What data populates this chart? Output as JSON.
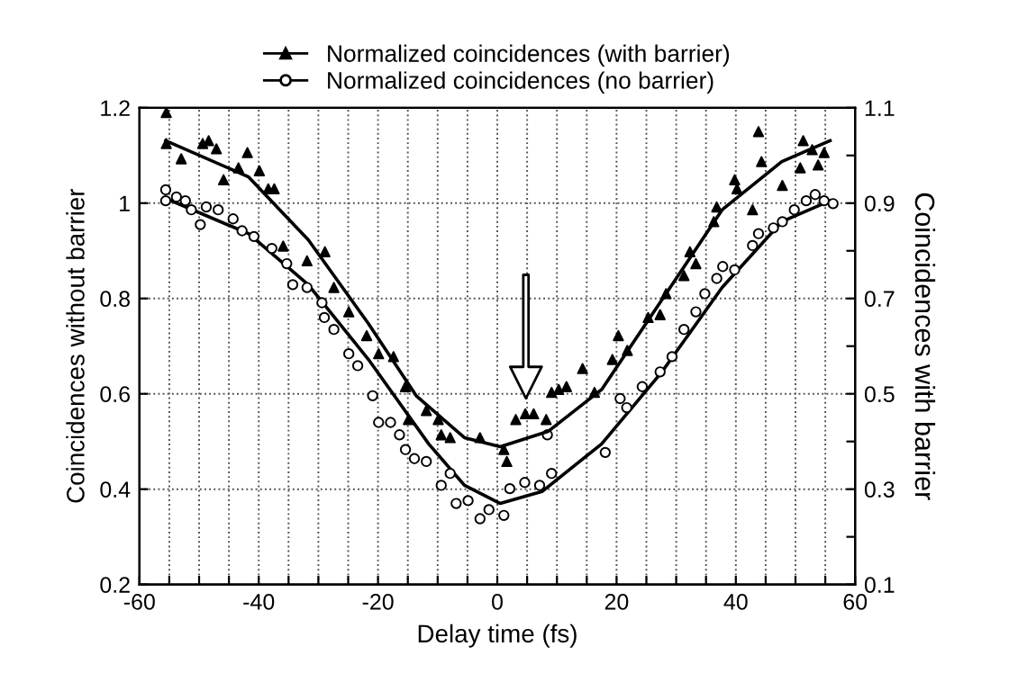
{
  "chart_data": {
    "type": "scatter",
    "xlabel": "Delay time (fs)",
    "ylabel": "Coincidences without barrier",
    "y2label": "Coincidences with barrier",
    "xlim": [
      -60,
      60
    ],
    "ylim": [
      0.2,
      1.2
    ],
    "y2lim": [
      0.1,
      1.1
    ],
    "xticks": [
      -60,
      {
        "value": -55,
        "label": null
      },
      {
        "value": -50,
        "label": null
      },
      {
        "value": -45,
        "label": null
      },
      -40,
      {
        "value": -35,
        "label": null
      },
      {
        "value": -30,
        "label": null
      },
      {
        "value": -25,
        "label": null
      },
      -20,
      {
        "value": -15,
        "label": null
      },
      {
        "value": -10,
        "label": null
      },
      {
        "value": -5,
        "label": null
      },
      0,
      {
        "value": 5,
        "label": null
      },
      {
        "value": 10,
        "label": null
      },
      {
        "value": 15,
        "label": null
      },
      20,
      {
        "value": 25,
        "label": null
      },
      {
        "value": 30,
        "label": null
      },
      {
        "value": 35,
        "label": null
      },
      40,
      {
        "value": 45,
        "label": null
      },
      {
        "value": 50,
        "label": null
      },
      {
        "value": 55,
        "label": null
      },
      60
    ],
    "yticks": [
      0.2,
      0.4,
      0.6,
      0.8,
      1,
      1.2
    ],
    "y2ticks": [
      0.1,
      {
        "value": 0.2,
        "label": null
      },
      0.3,
      {
        "value": 0.4,
        "label": null
      },
      0.5,
      {
        "value": 0.6,
        "label": null
      },
      0.7,
      {
        "value": 0.8,
        "label": null
      },
      0.9,
      {
        "value": 1.0,
        "label": null
      },
      1.1
    ],
    "grid": true,
    "line_style": "dotted",
    "legend": "top",
    "series": [
      {
        "name": "Normalized coincidences (with barrier)",
        "axis": "y2",
        "marker": "triangle",
        "color": "#000000",
        "x": [
          -55.5,
          -55.5,
          -53,
          -49.4,
          -48.4,
          -47.1,
          -45.9,
          -43.4,
          -41.9,
          -39.9,
          -38.4,
          -37.4,
          -35.9,
          -31.9,
          -28.9,
          -27.4,
          -24.9,
          -21.9,
          -19.9,
          -17.4,
          -15.4,
          -14.9,
          -11.9,
          -9.9,
          -9.4,
          -7.9,
          -2.9,
          1.6,
          1.1,
          3.1,
          4.7,
          6.1,
          9.1,
          11.6,
          8.2,
          10.3,
          14.3,
          16.3,
          19.3,
          21.8,
          20.3,
          25.3,
          27.3,
          28.3,
          31.3,
          32.3,
          33.3,
          36.3,
          36.8,
          39.8,
          40.2,
          42.8,
          43.8,
          44.3,
          47.8,
          50.8,
          51.3,
          52.8,
          53.8,
          54.8
        ],
        "values": [
          1.09,
          1.025,
          0.993,
          1.025,
          1.031,
          1.014,
          0.949,
          0.974,
          1.006,
          0.968,
          0.93,
          0.93,
          0.81,
          0.779,
          0.798,
          0.723,
          0.672,
          0.622,
          0.584,
          0.578,
          0.515,
          0.446,
          0.465,
          0.446,
          0.414,
          0.408,
          0.408,
          0.358,
          0.383,
          0.446,
          0.458,
          0.458,
          0.503,
          0.515,
          0.446,
          0.509,
          0.553,
          0.503,
          0.572,
          0.591,
          0.622,
          0.66,
          0.666,
          0.71,
          0.748,
          0.798,
          0.773,
          0.861,
          0.892,
          0.949,
          0.93,
          0.886,
          1.05,
          0.987,
          0.937,
          0.974,
          1.031,
          1.012,
          0.98,
          1.006
        ]
      },
      {
        "name": "Normalized coincidences (no barrier)",
        "axis": "y",
        "marker": "circle",
        "color": "#000000",
        "x": [
          -55.6,
          -55.6,
          -53.8,
          -52.3,
          -51.3,
          -49.8,
          -48.8,
          -46.8,
          -44.3,
          -42.8,
          -40.8,
          -37.8,
          -35.3,
          -34.3,
          -31.9,
          -29.4,
          -29,
          -27.4,
          -24.9,
          -23.4,
          -20.9,
          -19.9,
          -17.9,
          -16.4,
          -15.4,
          -13.9,
          -11.9,
          -9.4,
          -7.9,
          -6.9,
          -4.9,
          -2.9,
          -1.4,
          1.1,
          2.1,
          4.6,
          7.1,
          9.1,
          8.4,
          18.1,
          20.6,
          21.7,
          24.3,
          27.3,
          29.3,
          31.3,
          33.3,
          34.8,
          36.8,
          37.8,
          39.8,
          42.8,
          43.8,
          46.3,
          47.8,
          49.8,
          51.8,
          53.3,
          54.8,
          56.3
        ],
        "values": [
          1.028,
          1.005,
          1.013,
          1.005,
          0.986,
          0.955,
          0.992,
          0.986,
          0.967,
          0.942,
          0.93,
          0.905,
          0.873,
          0.829,
          0.823,
          0.791,
          0.76,
          0.735,
          0.684,
          0.659,
          0.596,
          0.54,
          0.54,
          0.514,
          0.483,
          0.464,
          0.458,
          0.408,
          0.433,
          0.37,
          0.376,
          0.338,
          0.357,
          0.345,
          0.401,
          0.414,
          0.408,
          0.433,
          0.514,
          0.477,
          0.59,
          0.571,
          0.615,
          0.646,
          0.678,
          0.735,
          0.772,
          0.81,
          0.842,
          0.867,
          0.86,
          0.911,
          0.936,
          0.948,
          0.961,
          0.986,
          1.005,
          1.018,
          1.005,
          0.999
        ]
      },
      {
        "type": "line",
        "axis": "y2",
        "color": "#000000",
        "line_style": "solid",
        "marker": "none",
        "x": [
          -55.6,
          -41.7,
          -31.7,
          -21.6,
          -13.6,
          -5.5,
          0.5,
          8.5,
          17.5,
          27.6,
          37.7,
          47.7,
          55.8
        ],
        "values": [
          1.031,
          0.955,
          0.823,
          0.647,
          0.496,
          0.408,
          0.389,
          0.421,
          0.509,
          0.697,
          0.886,
          0.987,
          1.031
        ]
      },
      {
        "type": "line",
        "axis": "y",
        "color": "#000000",
        "line_style": "solid",
        "marker": "none",
        "x": [
          -55.6,
          -41.7,
          -31.7,
          -21.6,
          -11.5,
          -5.5,
          0.5,
          7.5,
          17.5,
          27.6,
          37.7,
          47.7,
          55.8
        ],
        "values": [
          1.01,
          0.936,
          0.829,
          0.672,
          0.495,
          0.408,
          0.37,
          0.395,
          0.495,
          0.646,
          0.823,
          0.961,
          1.005
        ]
      }
    ]
  }
}
